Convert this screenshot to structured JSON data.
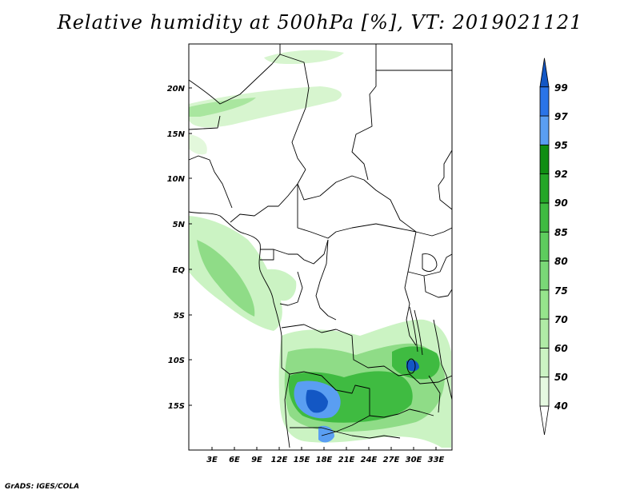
{
  "title": "Relative humidity at 500hPa [%], VT: 2019021121",
  "credit": "GrADS: IGES/COLA",
  "map": {
    "lat_ticks": [
      "20N",
      "15N",
      "10N",
      "5N",
      "EQ",
      "5S",
      "10S",
      "15S"
    ],
    "lon_ticks": [
      "3E",
      "6E",
      "9E",
      "12E",
      "15E",
      "18E",
      "21E",
      "24E",
      "27E",
      "30E",
      "33E"
    ]
  },
  "colorbar": {
    "levels": [
      "40",
      "50",
      "60",
      "70",
      "75",
      "80",
      "85",
      "90",
      "92",
      "95",
      "97",
      "99"
    ],
    "colors": [
      "#ffffff",
      "#e6f9e1",
      "#cbf3c3",
      "#b0eba6",
      "#96e48c",
      "#7ad877",
      "#5ecc5e",
      "#3fbb41",
      "#24a627",
      "#108e13",
      "#5a9ef2",
      "#2a74e8",
      "#1357c4"
    ]
  },
  "legend_colors": {
    "green_light": "#d7f5cf",
    "green_mid": "#8fdc87",
    "green_dark": "#3fbb41",
    "blue_light": "#5a9ef2",
    "blue_dark": "#1357c4"
  }
}
